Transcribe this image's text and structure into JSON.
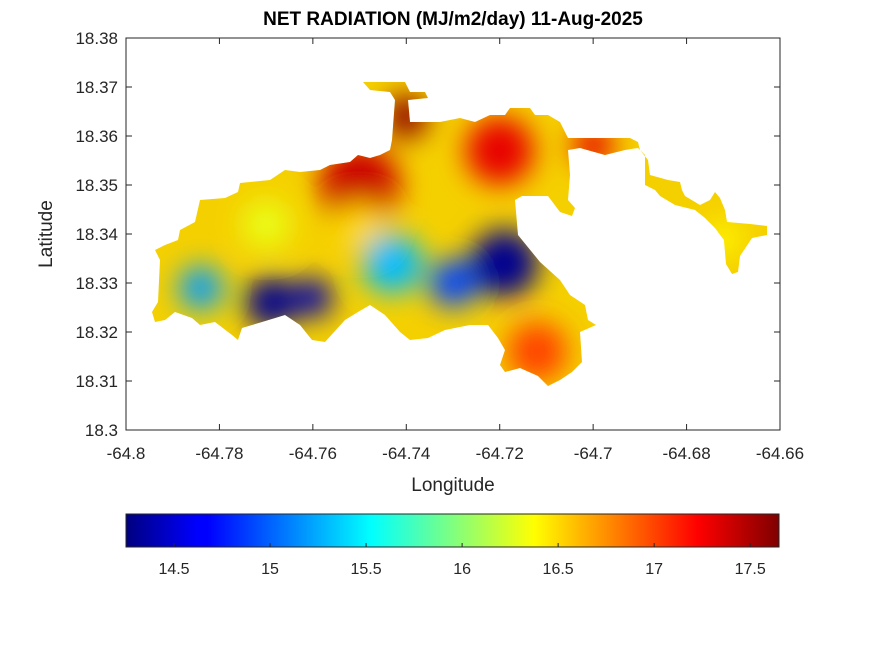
{
  "chart_data": {
    "type": "heatmap",
    "title": "NET RADIATION (MJ/m2/day) 11-Aug-2025",
    "xlabel": "Longitude",
    "ylabel": "Latitude",
    "xlim": [
      -64.8,
      -64.66
    ],
    "ylim": [
      18.3,
      18.38
    ],
    "xticks": [
      "-64.8",
      "-64.78",
      "-64.76",
      "-64.74",
      "-64.72",
      "-64.7",
      "-64.68",
      "-64.66"
    ],
    "yticks": [
      "18.3",
      "18.31",
      "18.32",
      "18.33",
      "18.34",
      "18.35",
      "18.36",
      "18.37",
      "18.38"
    ],
    "colormap": "jet",
    "colorbar": {
      "orientation": "horizontal",
      "placement": "bottom",
      "range": [
        14.25,
        17.65
      ],
      "ticks": [
        "14.5",
        "15",
        "15.5",
        "16",
        "16.5",
        "17",
        "17.5"
      ]
    },
    "hotspots": [
      {
        "lon": -64.769,
        "lat": 18.326,
        "value": 14.3
      },
      {
        "lon": -64.76,
        "lat": 18.327,
        "value": 14.4
      },
      {
        "lon": -64.719,
        "lat": 18.334,
        "value": 14.3
      },
      {
        "lon": -64.73,
        "lat": 18.33,
        "value": 14.9
      },
      {
        "lon": -64.743,
        "lat": 18.334,
        "value": 15.3
      },
      {
        "lon": -64.74,
        "lat": 18.364,
        "value": 17.6
      },
      {
        "lon": -64.72,
        "lat": 18.357,
        "value": 17.3
      },
      {
        "lon": -64.75,
        "lat": 18.35,
        "value": 17.4
      },
      {
        "lon": -64.712,
        "lat": 18.316,
        "value": 17.0
      },
      {
        "lon": -64.784,
        "lat": 18.329,
        "value": 15.2
      },
      {
        "lon": -64.672,
        "lat": 18.339,
        "value": 16.4
      },
      {
        "lon": -64.77,
        "lat": 18.342,
        "value": 16.3
      },
      {
        "lon": -64.75,
        "lat": 18.342,
        "value": 16.5
      },
      {
        "lon": -64.7,
        "lat": 18.358,
        "value": 17.3
      }
    ]
  }
}
